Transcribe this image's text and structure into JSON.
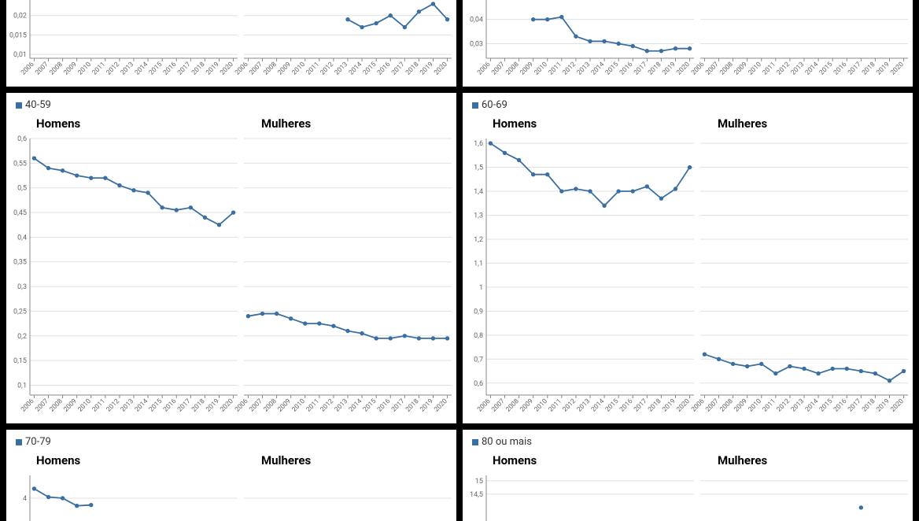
{
  "global": {
    "years": [
      2006,
      2007,
      2008,
      2009,
      2010,
      2011,
      2012,
      2013,
      2014,
      2015,
      2016,
      2017,
      2018,
      2019,
      2020
    ],
    "series_color": "#3b6fa0",
    "marker_fill": "#3b6fa0",
    "marker_radius": 2.2,
    "line_width": 1.8,
    "background_color": "#ffffff",
    "grid_color": "#e0e0e0",
    "axis_color": "#888888",
    "tick_font_size": 9,
    "title_font_size": 15,
    "title_font_weight": 700,
    "legend_font_size": 13,
    "subtitle_men": "Homens",
    "subtitle_women": "Mulheres"
  },
  "panels": [
    {
      "key": "p0_left",
      "legend_label": "",
      "row": 0,
      "col": 0,
      "partial": "bottom",
      "y_ticks": [
        0.01,
        0.015,
        0.02
      ],
      "y_tick_labels": [
        "0,01",
        "0,015",
        "0,02"
      ],
      "ylim": [
        0.009,
        0.024
      ],
      "men": {
        "values": []
      },
      "women": {
        "values": [
          null,
          null,
          null,
          null,
          null,
          null,
          null,
          0.019,
          0.017,
          0.018,
          0.02,
          0.017,
          0.021,
          0.023,
          0.019
        ]
      }
    },
    {
      "key": "p0_right",
      "legend_label": "",
      "row": 0,
      "col": 1,
      "partial": "bottom",
      "y_ticks": [
        0.03,
        0.04
      ],
      "y_tick_labels": [
        "0,03",
        "0,04"
      ],
      "ylim": [
        0.024,
        0.048
      ],
      "men": {
        "values": [
          null,
          null,
          null,
          0.04,
          0.04,
          0.041,
          0.033,
          0.031,
          0.031,
          0.03,
          0.029,
          0.027,
          0.027,
          0.028,
          0.028
        ]
      },
      "women": {
        "values": []
      }
    },
    {
      "key": "p_40_59",
      "legend_label": "40-59",
      "row": 1,
      "col": 0,
      "partial": "full",
      "y_ticks": [
        0.1,
        0.15,
        0.2,
        0.25,
        0.3,
        0.35,
        0.4,
        0.45,
        0.5,
        0.55,
        0.6
      ],
      "y_tick_labels": [
        "0,1",
        "0,15",
        "0,2",
        "0,25",
        "0,3",
        "0,35",
        "0,4",
        "0,45",
        "0,5",
        "0,55",
        "0,6"
      ],
      "ylim": [
        0.08,
        0.6
      ],
      "men": {
        "values": [
          0.56,
          0.54,
          0.535,
          0.525,
          0.52,
          0.52,
          0.505,
          0.495,
          0.49,
          0.46,
          0.455,
          0.46,
          0.44,
          0.425,
          0.45
        ]
      },
      "women": {
        "values": [
          0.24,
          0.245,
          0.245,
          0.235,
          0.225,
          0.225,
          0.22,
          0.21,
          0.205,
          0.195,
          0.195,
          0.2,
          0.195,
          0.195,
          0.195
        ]
      }
    },
    {
      "key": "p_60_69",
      "legend_label": "60-69",
      "row": 1,
      "col": 1,
      "partial": "full",
      "y_ticks": [
        0.6,
        0.7,
        0.8,
        0.9,
        1.0,
        1.1,
        1.2,
        1.3,
        1.4,
        1.5,
        1.6
      ],
      "y_tick_labels": [
        "0,6",
        "0,7",
        "0,8",
        "0,9",
        "1",
        "1,1",
        "1,2",
        "1,3",
        "1,4",
        "1,5",
        "1,6"
      ],
      "ylim": [
        0.55,
        1.62
      ],
      "men": {
        "values": [
          1.6,
          1.56,
          1.53,
          1.47,
          1.47,
          1.4,
          1.41,
          1.4,
          1.34,
          1.4,
          1.4,
          1.42,
          1.37,
          1.41,
          1.5
        ]
      },
      "women": {
        "values": [
          0.72,
          0.7,
          0.68,
          0.67,
          0.68,
          0.64,
          0.67,
          0.66,
          0.64,
          0.66,
          0.66,
          0.65,
          0.64,
          0.61,
          0.65
        ]
      }
    },
    {
      "key": "p_70_79",
      "legend_label": "70-79",
      "row": 2,
      "col": 0,
      "partial": "top",
      "y_ticks": [
        4
      ],
      "y_tick_labels": [
        "4"
      ],
      "ylim": [
        3.4,
        4.6
      ],
      "men": {
        "values": [
          4.25,
          4.03,
          4.0,
          3.8,
          3.82,
          null,
          null,
          null,
          null,
          null,
          null,
          null,
          null,
          null,
          null
        ]
      },
      "women": {
        "values": []
      }
    },
    {
      "key": "p_80_plus",
      "legend_label": "80 ou mais",
      "row": 2,
      "col": 1,
      "partial": "top",
      "y_ticks": [
        14.5,
        15
      ],
      "y_tick_labels": [
        "14,5",
        "15"
      ],
      "ylim": [
        13.5,
        15.2
      ],
      "men": {
        "values": []
      },
      "women": {
        "values": [
          null,
          null,
          null,
          null,
          null,
          null,
          null,
          null,
          null,
          null,
          null,
          14.0,
          null,
          null,
          null
        ]
      }
    }
  ]
}
